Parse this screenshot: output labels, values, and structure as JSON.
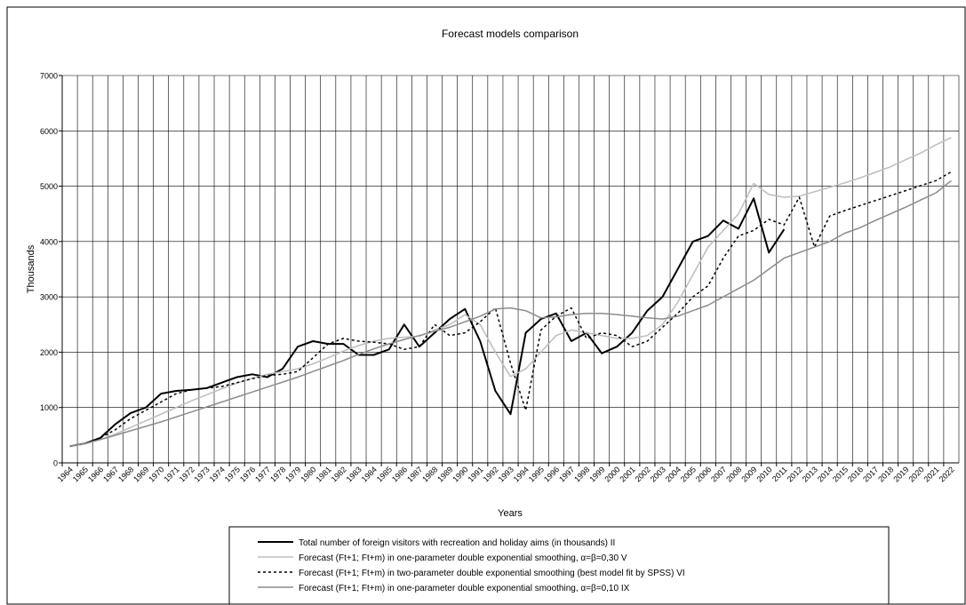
{
  "chart_data": {
    "type": "line",
    "title": "Forecast models comparison",
    "y_label": "Thousands",
    "x_label": "Years",
    "categories": [
      "1964",
      "1965",
      "1966",
      "1967",
      "1968",
      "1969",
      "1970",
      "1971",
      "1972",
      "1973",
      "1974",
      "1975",
      "1976",
      "1977",
      "1978",
      "1979",
      "1980",
      "1981",
      "1982",
      "1983",
      "1984",
      "1985",
      "1986",
      "1987",
      "1988",
      "1989",
      "1990",
      "1991",
      "1992",
      "1993",
      "1994",
      "1995",
      "1996",
      "1997",
      "1998",
      "1999",
      "2000",
      "2001",
      "2002",
      "2003",
      "2004",
      "2005",
      "2006",
      "2007",
      "2008",
      "2009",
      "2010",
      "2011",
      "2012",
      "2013",
      "2014",
      "2015",
      "2016",
      "2017",
      "2018",
      "2019",
      "2020",
      "2021",
      "2022"
    ],
    "ylim": [
      0,
      7000
    ],
    "yticks": [
      0,
      1000,
      2000,
      3000,
      4000,
      5000,
      6000,
      7000
    ],
    "grid": true,
    "series": [
      {
        "name": "Total number of foreign visitors with recreation and holiday aims (in thousands) II",
        "color": "#000000",
        "linewidth": 2,
        "values": [
          300,
          350,
          450,
          700,
          900,
          1000,
          1250,
          1300,
          1320,
          1350,
          1450,
          1550,
          1600,
          1550,
          1700,
          2100,
          2200,
          2150,
          2150,
          1950,
          1950,
          2050,
          2500,
          2100,
          2350,
          2600,
          2780,
          2200,
          1300,
          880,
          2350,
          2600,
          2700,
          2200,
          2350,
          1980,
          2100,
          2350,
          2750,
          3000,
          3500,
          4000,
          4100,
          4380,
          4230,
          4780,
          3800,
          4220,
          null,
          null,
          null,
          null,
          null,
          null,
          null,
          null,
          null,
          null,
          null
        ]
      },
      {
        "name": "Forecast (Ft+1; Ft+m) in one-parameter double exponential smoothing, α=β=0,30 V",
        "color": "#bdbdbd",
        "linewidth": 1.5,
        "values": [
          300,
          340,
          420,
          520,
          640,
          760,
          880,
          1000,
          1120,
          1230,
          1340,
          1440,
          1530,
          1600,
          1650,
          1700,
          1790,
          1900,
          2020,
          2120,
          2200,
          2250,
          2270,
          2290,
          2400,
          2500,
          2680,
          2500,
          2000,
          1560,
          1700,
          2000,
          2300,
          2400,
          2350,
          2300,
          2250,
          2250,
          2300,
          2500,
          2900,
          3400,
          3900,
          4200,
          4500,
          5050,
          4850,
          4800,
          4820,
          4900,
          4980,
          5060,
          5150,
          5250,
          5350,
          5480,
          5600,
          5750,
          5880
        ]
      },
      {
        "name": "Forecast (Ft+1; Ft+m) in two-parameter double exponential smoothing (best model fit by SPSS) VI",
        "color": "#000000",
        "linewidth": 1.5,
        "dashed": true,
        "values": [
          300,
          350,
          450,
          600,
          800,
          950,
          1100,
          1250,
          1320,
          1350,
          1380,
          1450,
          1520,
          1580,
          1600,
          1650,
          1900,
          2150,
          2250,
          2200,
          2180,
          2150,
          2050,
          2100,
          2500,
          2300,
          2350,
          2550,
          2800,
          1800,
          950,
          2400,
          2650,
          2800,
          2250,
          2350,
          2300,
          2100,
          2200,
          2450,
          2700,
          3000,
          3200,
          3700,
          4100,
          4200,
          4400,
          4300,
          4800,
          3900,
          4460,
          4560,
          4650,
          4740,
          4830,
          4920,
          5010,
          5100,
          5260
        ]
      },
      {
        "name": "Forecast (Ft+1; Ft+m) in one-parameter double exponential smoothing, α=β=0,10 IX",
        "color": "#8c8c8c",
        "linewidth": 1.5,
        "values": [
          300,
          350,
          420,
          500,
          580,
          660,
          740,
          830,
          920,
          1010,
          1100,
          1190,
          1280,
          1370,
          1460,
          1550,
          1650,
          1750,
          1850,
          1960,
          2060,
          2150,
          2230,
          2300,
          2380,
          2450,
          2550,
          2650,
          2780,
          2800,
          2750,
          2620,
          2640,
          2680,
          2700,
          2700,
          2680,
          2650,
          2620,
          2600,
          2650,
          2750,
          2850,
          3000,
          3150,
          3300,
          3500,
          3700,
          3800,
          3900,
          4000,
          4150,
          4250,
          4380,
          4500,
          4620,
          4750,
          4880,
          5100
        ]
      }
    ]
  }
}
